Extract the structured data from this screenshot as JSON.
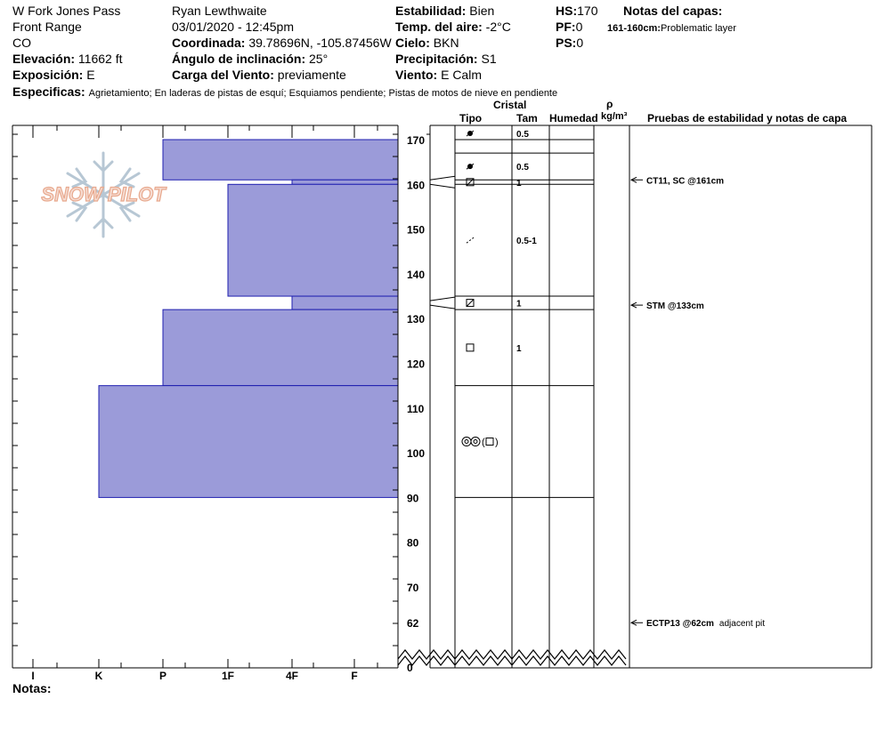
{
  "header": {
    "location": "W Fork Jones Pass",
    "range": "Front Range",
    "state": "CO",
    "elevation_label": "Elevación:",
    "elevation_value": "11662 ft",
    "aspect_label": "Exposición:",
    "aspect_value": "E",
    "specifics_label": "Especificas:",
    "specifics_value": "Agrietamiento;  En laderas de pistas de esquí;  Esquiamos pendiente;  Pistas de motos de nieve en pendiente",
    "observer": "Ryan Lewthwaite",
    "datetime": "03/01/2020 - 12:45pm",
    "coord_label": "Coordinada:",
    "coord_value": "39.78696N, -105.87456W",
    "slope_label": "Ángulo de inclinación:",
    "slope_value": "25°",
    "wind_load_label": "Carga del Viento:",
    "wind_load_value": "previamente",
    "stability_label": "Estabilidad:",
    "stability_value": "Bien",
    "air_temp_label": "Temp. del aire:",
    "air_temp_value": "-2°C",
    "sky_label": "Cielo:",
    "sky_value": "BKN",
    "precip_label": "Precipitación:",
    "precip_value": "S1",
    "wind_label": "Viento:",
    "wind_value": "E Calm",
    "hs_label": "HS:",
    "hs_value": "170",
    "pf_label": "PF:",
    "pf_value": "0",
    "ps_label": "PS:",
    "ps_value": "0",
    "layer_notes_label": "Notas del capas:",
    "layer_note_range": "161-160cm:",
    "layer_note_text": "Problematic layer"
  },
  "logo_text": "SNOW PILOT",
  "notes_label": "Notas:",
  "columns": {
    "cristal": "Cristal",
    "tipo": "Tipo",
    "tam": "Tam",
    "humedad": "Humedad",
    "rho": "ρ",
    "density_unit": "kg/m³",
    "tests": "Pruebas de estabilidad y notas de capa"
  },
  "chart_data": {
    "type": "bar",
    "orientation": "horizontal",
    "x_axis": {
      "labels": [
        "I",
        "K",
        "P",
        "1F",
        "4F",
        "F"
      ]
    },
    "y_axis": {
      "unit": "cm",
      "ticks": [
        170,
        160,
        150,
        140,
        130,
        120,
        110,
        100,
        90,
        80,
        70,
        62,
        0
      ],
      "range": [
        0,
        170
      ]
    },
    "layers": [
      {
        "top": 170,
        "bottom": 161,
        "hardness": "P"
      },
      {
        "top": 161,
        "bottom": 160,
        "hardness": "4F"
      },
      {
        "top": 160,
        "bottom": 135,
        "hardness": "1F"
      },
      {
        "top": 135,
        "bottom": 132,
        "hardness": "4F"
      },
      {
        "top": 132,
        "bottom": 115,
        "hardness": "P"
      },
      {
        "top": 115,
        "bottom": 90,
        "hardness": "K"
      }
    ],
    "grain_rows": [
      {
        "top": 170,
        "bottom": 167,
        "type": "precipitation-particles-icon",
        "size": "0.5"
      },
      {
        "top": 167,
        "bottom": 161,
        "type": "precipitation-particles-icon",
        "size": "0.5"
      },
      {
        "top": 161,
        "bottom": 160,
        "type": "faceted-rounded-icon",
        "size": "1"
      },
      {
        "top": 160,
        "bottom": 135,
        "type": "decomposing-fragments-icon",
        "size": "0.5-1"
      },
      {
        "top": 135,
        "bottom": 132,
        "type": "faceted-rounded-icon",
        "size": "1"
      },
      {
        "top": 132,
        "bottom": 115,
        "type": "faceted-icon",
        "size": "1"
      },
      {
        "top": 115,
        "bottom": 90,
        "type": "melt-forms-with-facets-icon",
        "size": ""
      }
    ],
    "tests": [
      {
        "depth": 161,
        "label": "CT11, SC @161cm",
        "note": ""
      },
      {
        "depth": 133,
        "label": "STM @133cm",
        "note": ""
      },
      {
        "depth": 62,
        "label": "ECTP13 @62cm",
        "note": "adjacent pit"
      }
    ]
  }
}
